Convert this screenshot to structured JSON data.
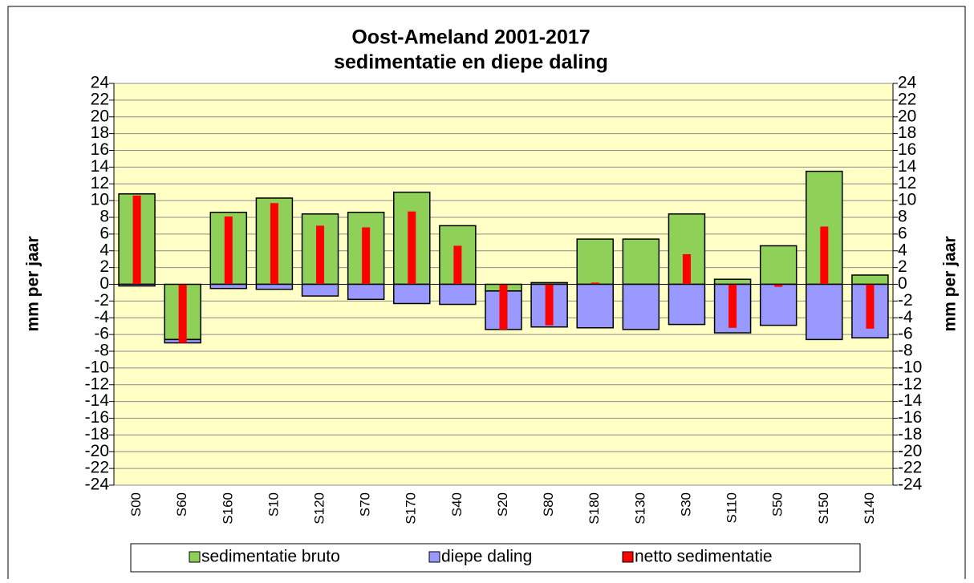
{
  "chart_data": {
    "type": "bar",
    "title": "Oost-Ameland 2001-2017",
    "subtitle": "sedimentatie en diepe daling",
    "y_label": "mm per jaar",
    "y2_label": "mm per jaar",
    "categories": [
      "S00",
      "S60",
      "S160",
      "S10",
      "S120",
      "S70",
      "S170",
      "S40",
      "S20",
      "S80",
      "S180",
      "S130",
      "S30",
      "S110",
      "S50",
      "S150",
      "S140"
    ],
    "series": [
      {
        "name": "sedimentatie bruto",
        "color": "#8fd158",
        "values": [
          10.8,
          -6.6,
          8.6,
          10.3,
          8.4,
          8.6,
          11.0,
          7.0,
          -0.8,
          0.2,
          5.4,
          5.4,
          8.4,
          0.6,
          4.6,
          13.5,
          1.1
        ]
      },
      {
        "name": "diepe daling",
        "color": "#9999ff",
        "values": [
          -0.2,
          -0.4,
          -0.5,
          -0.6,
          -1.4,
          -1.8,
          -2.3,
          -2.4,
          -4.6,
          -5.1,
          -5.2,
          -5.4,
          -4.8,
          -5.8,
          -4.9,
          -6.6,
          -6.4
        ]
      },
      {
        "name": "netto sedimentatie",
        "color": "#ff0000",
        "values": [
          10.6,
          -7.0,
          8.1,
          9.7,
          7.0,
          6.8,
          8.7,
          4.6,
          -5.4,
          -4.9,
          0.2,
          0.0,
          3.6,
          -5.2,
          -0.3,
          6.9,
          -5.3
        ]
      }
    ],
    "ylim": [
      -24,
      24
    ],
    "yticks": [
      -24,
      -22,
      -20,
      -18,
      -16,
      -14,
      -12,
      -10,
      -8,
      -6,
      -4,
      -2,
      0,
      2,
      4,
      6,
      8,
      10,
      12,
      14,
      16,
      18,
      20,
      22,
      24
    ],
    "y2lim": [
      -24,
      24
    ],
    "y2ticks": [
      -24,
      -22,
      -20,
      -18,
      -16,
      -14,
      -12,
      -10,
      -8,
      -6,
      -4,
      -2,
      0,
      2,
      4,
      6,
      8,
      10,
      12,
      14,
      16,
      18,
      20,
      22,
      24
    ],
    "grid": true,
    "legend": "bottom"
  }
}
